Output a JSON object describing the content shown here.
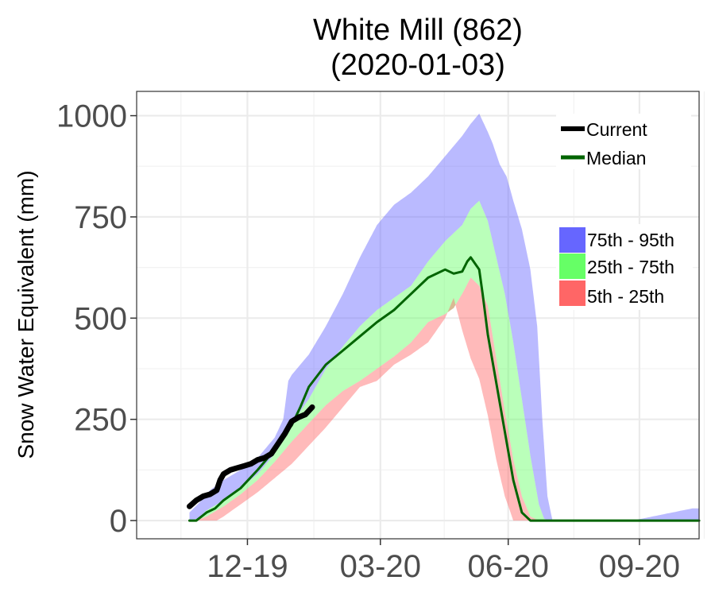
{
  "chart_data": {
    "type": "area",
    "title_line1": "White Mill (862)",
    "title_line2": "(2020-01-03)",
    "ylabel": "Snow Water Equivalent (mm)",
    "xlabel": "",
    "ylim": [
      -45,
      1060
    ],
    "xlim": [
      -31,
      299
    ],
    "grid": true,
    "legend_placement": "top-right",
    "yticks": [
      0,
      250,
      500,
      750,
      1000
    ],
    "xticks": [
      {
        "label": "12-19",
        "day": 34
      },
      {
        "label": "03-20",
        "day": 112
      },
      {
        "label": "06-20",
        "day": 187
      },
      {
        "label": "09-20",
        "day": 264
      }
    ],
    "x_unit": "days since 2019-10-25",
    "colors": {
      "p75_95": "#6666ff",
      "p25_75": "#66ff66",
      "p5_25": "#ff6666",
      "median": "#006400",
      "current": "#000000"
    },
    "legend": {
      "lines": [
        {
          "label": "Current",
          "color": "#000000"
        },
        {
          "label": "Median",
          "color": "#006400"
        }
      ],
      "bands": [
        {
          "label": "75th - 95th",
          "color": "#6666ff"
        },
        {
          "label": "25th - 75th",
          "color": "#66ff66"
        },
        {
          "label": "5th - 25th",
          "color": "#ff6666"
        }
      ]
    },
    "series": [
      {
        "name": "95th",
        "x": [
          0,
          6,
          12,
          20,
          30,
          40,
          50,
          55,
          58,
          60,
          63,
          70,
          80,
          90,
          100,
          110,
          120,
          130,
          140,
          150,
          160,
          165,
          170,
          175,
          178,
          182,
          186,
          190,
          195,
          200,
          204,
          207,
          210,
          213,
          220,
          260,
          295,
          299
        ],
        "values": [
          20,
          45,
          75,
          100,
          125,
          155,
          205,
          250,
          345,
          360,
          375,
          410,
          480,
          560,
          650,
          730,
          780,
          810,
          850,
          900,
          950,
          980,
          1005,
          960,
          930,
          880,
          850,
          790,
          720,
          620,
          480,
          250,
          60,
          0,
          0,
          0,
          30,
          30
        ]
      },
      {
        "name": "75th",
        "x": [
          0,
          5,
          10,
          20,
          30,
          40,
          50,
          55,
          60,
          70,
          80,
          90,
          100,
          110,
          120,
          130,
          140,
          150,
          160,
          165,
          170,
          175,
          180,
          185,
          190,
          195,
          200,
          205,
          208,
          210,
          299
        ],
        "values": [
          0,
          5,
          25,
          50,
          80,
          115,
          165,
          205,
          240,
          300,
          375,
          430,
          480,
          520,
          550,
          580,
          640,
          690,
          730,
          770,
          790,
          740,
          650,
          560,
          440,
          300,
          160,
          40,
          5,
          0,
          0
        ]
      },
      {
        "name": "25th",
        "x": [
          0,
          4,
          10,
          20,
          30,
          40,
          50,
          60,
          70,
          80,
          90,
          100,
          110,
          120,
          130,
          140,
          150,
          155,
          160,
          165,
          170,
          175,
          180,
          185,
          190,
          195,
          200,
          205,
          299
        ],
        "values": [
          0,
          0,
          10,
          35,
          65,
          100,
          145,
          195,
          240,
          285,
          320,
          345,
          375,
          405,
          440,
          490,
          510,
          525,
          560,
          600,
          580,
          530,
          400,
          270,
          150,
          60,
          10,
          0,
          0
        ]
      },
      {
        "name": "5th",
        "x": [
          0,
          16,
          20,
          30,
          40,
          50,
          60,
          70,
          80,
          90,
          100,
          110,
          120,
          130,
          140,
          150,
          155,
          160,
          165,
          170,
          175,
          180,
          185,
          190,
          195,
          200,
          299
        ],
        "values": [
          0,
          0,
          10,
          40,
          70,
          105,
          140,
          185,
          230,
          280,
          330,
          345,
          385,
          410,
          440,
          500,
          550,
          470,
          400,
          350,
          260,
          150,
          60,
          0,
          0,
          0,
          0
        ]
      },
      {
        "name": "Median",
        "x": [
          0,
          4,
          10,
          15,
          20,
          30,
          40,
          50,
          55,
          60,
          65,
          70,
          80,
          90,
          100,
          110,
          120,
          130,
          140,
          150,
          155,
          160,
          163,
          165,
          170,
          172,
          175,
          180,
          185,
          190,
          195,
          200,
          205,
          210,
          299
        ],
        "values": [
          0,
          0,
          20,
          30,
          50,
          80,
          125,
          175,
          210,
          235,
          280,
          330,
          385,
          420,
          455,
          490,
          520,
          560,
          600,
          620,
          610,
          615,
          640,
          650,
          620,
          560,
          460,
          340,
          220,
          100,
          20,
          0,
          0,
          0,
          0
        ]
      },
      {
        "name": "Current",
        "x": [
          0,
          4,
          8,
          12,
          16,
          18,
          20,
          24,
          28,
          32,
          36,
          40,
          44,
          48,
          52,
          56,
          60,
          64,
          68,
          72
        ],
        "values": [
          35,
          50,
          60,
          65,
          75,
          100,
          115,
          125,
          130,
          135,
          140,
          150,
          155,
          165,
          190,
          215,
          245,
          255,
          262,
          280
        ]
      }
    ]
  }
}
